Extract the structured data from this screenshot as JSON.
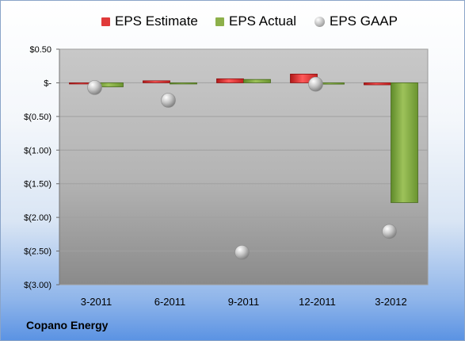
{
  "company": "Copano Energy",
  "legend": [
    {
      "name": "EPS Estimate",
      "color": "#e03a3a",
      "shape": "bar"
    },
    {
      "name": "EPS Actual",
      "color": "#8db04a",
      "shape": "bar"
    },
    {
      "name": "EPS GAAP",
      "color": "#b8b8b8",
      "shape": "circle"
    }
  ],
  "chart_data": {
    "type": "bar",
    "categories": [
      "3-2011",
      "6-2011",
      "9-2011",
      "12-2011",
      "3-2012"
    ],
    "series": [
      {
        "name": "EPS Estimate",
        "type": "bar",
        "color": "#e03a3a",
        "values": [
          -0.01,
          0.03,
          0.06,
          0.13,
          -0.03
        ]
      },
      {
        "name": "EPS Actual",
        "type": "bar",
        "color": "#8db04a",
        "values": [
          -0.06,
          -0.01,
          0.05,
          -0.02,
          -1.78
        ]
      },
      {
        "name": "EPS GAAP",
        "type": "scatter",
        "color": "#b8b8b8",
        "values": [
          -0.07,
          -0.26,
          -2.52,
          -0.02,
          -2.21
        ]
      }
    ],
    "yticks": [
      0.5,
      0,
      -0.5,
      -1,
      -1.5,
      -2,
      -2.5,
      -3
    ],
    "ytick_labels": [
      "$0.50",
      "$-",
      "$(0.50)",
      "$(1.00)",
      "$(1.50)",
      "$(2.00)",
      "$(2.50)",
      "$(3.00)"
    ],
    "ylim": [
      -3,
      0.5
    ],
    "grid": true,
    "legend_position": "top"
  }
}
